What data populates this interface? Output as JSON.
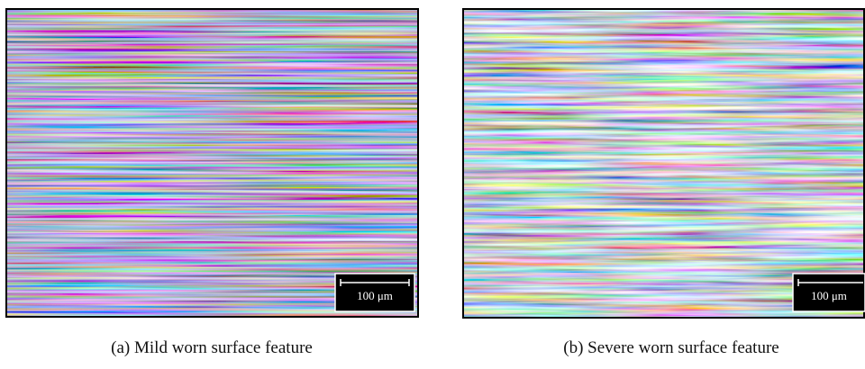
{
  "figure": {
    "panels": [
      {
        "caption": "(a) Mild worn surface feature",
        "scale_label": "100 μm"
      },
      {
        "caption": "(b) Severe worn surface feature",
        "scale_label": "100 μm"
      }
    ]
  }
}
